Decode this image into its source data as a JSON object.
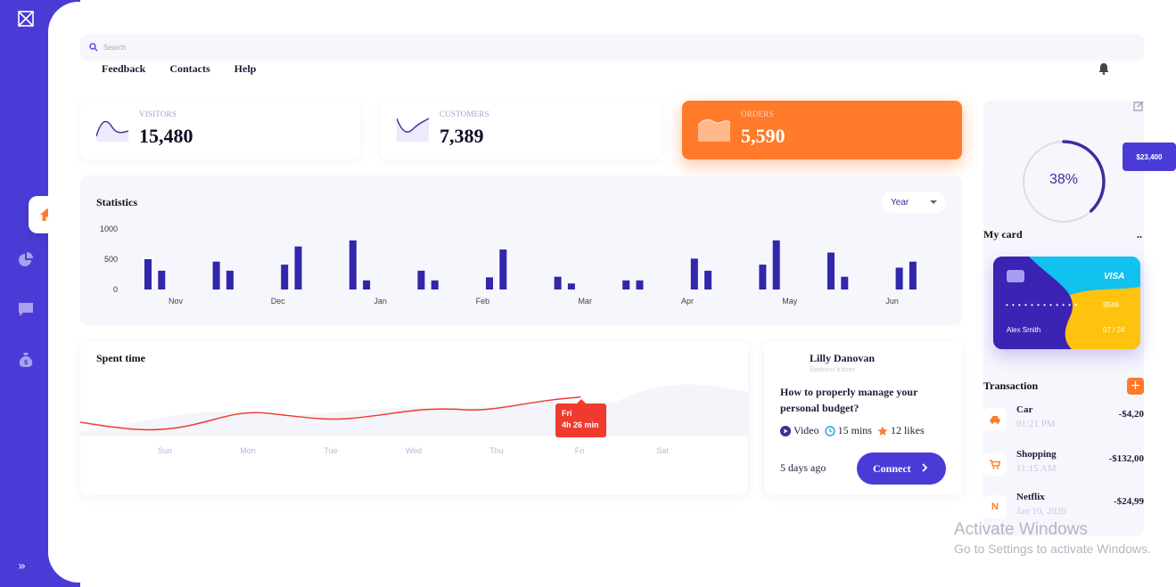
{
  "search": {
    "placeholder": "Search"
  },
  "topnav": [
    "Feedback",
    "Contacts",
    "Help"
  ],
  "stats": [
    {
      "label": "VISITORS",
      "value": "15,480"
    },
    {
      "label": "CUSTOMERS",
      "value": "7,389"
    },
    {
      "label": "ORDERS",
      "value": "5,590"
    }
  ],
  "statistics": {
    "title": "Statistics",
    "period": "Year"
  },
  "chart_data": [
    {
      "type": "bar",
      "title": "Statistics",
      "ylim": [
        0,
        1000
      ],
      "yticks": [
        "1000",
        "500",
        "0"
      ],
      "month_labels": [
        "Nov",
        "Dec",
        "Jan",
        "Feb",
        "Mar",
        "Apr",
        "May",
        "Jun"
      ],
      "values": [
        500,
        310,
        460,
        310,
        410,
        710,
        810,
        150,
        310,
        150,
        200,
        660,
        210,
        100,
        150,
        150,
        510,
        310,
        410,
        810,
        610,
        210,
        360,
        460
      ],
      "color": "#3127ab"
    },
    {
      "type": "line",
      "title": "Spent time",
      "categories": [
        "Sun",
        "Mon",
        "Tue",
        "Wed",
        "Thu",
        "Fri",
        "Sat"
      ],
      "tooltip": {
        "day": "Fri",
        "value": "4h 26 min"
      },
      "color": "#f03a2e"
    }
  ],
  "spent_time": {
    "title": "Spent time"
  },
  "trainer": {
    "name": "Lilly Danovan",
    "role": "Business trainer",
    "question": "How to properly manage your personal budget?",
    "meta": {
      "type": "Video",
      "duration": "15 mins",
      "likes": "12 likes"
    },
    "ago": "5 days ago",
    "connect_label": "Connect"
  },
  "wallet": {
    "progress_percent": 38,
    "progress_label": "38%",
    "balance": "$23,400",
    "my_card_title": "My card",
    "more": "..",
    "card": {
      "brand": "VISA",
      "masked_number": "• • • •   • • • •   • • • •",
      "last_digits": "9546",
      "holder": "Alex Smith",
      "expiry": "07 / 24"
    }
  },
  "transactions": {
    "title": "Transaction",
    "add_label": "+",
    "items": [
      {
        "icon": "car-icon",
        "name": "Car",
        "time": "01:21 PM",
        "amount": "-$4,20"
      },
      {
        "icon": "shopping-cart-icon",
        "name": "Shopping",
        "time": "11:15 AM",
        "amount": "-$132,00"
      },
      {
        "icon": "netflix-icon",
        "name": "Netflix",
        "time": "Jan 10, 2020",
        "amount": "-$24,99"
      }
    ]
  },
  "watermark": {
    "line1": "Activate Windows",
    "line2": "Go to Settings to activate Windows."
  }
}
